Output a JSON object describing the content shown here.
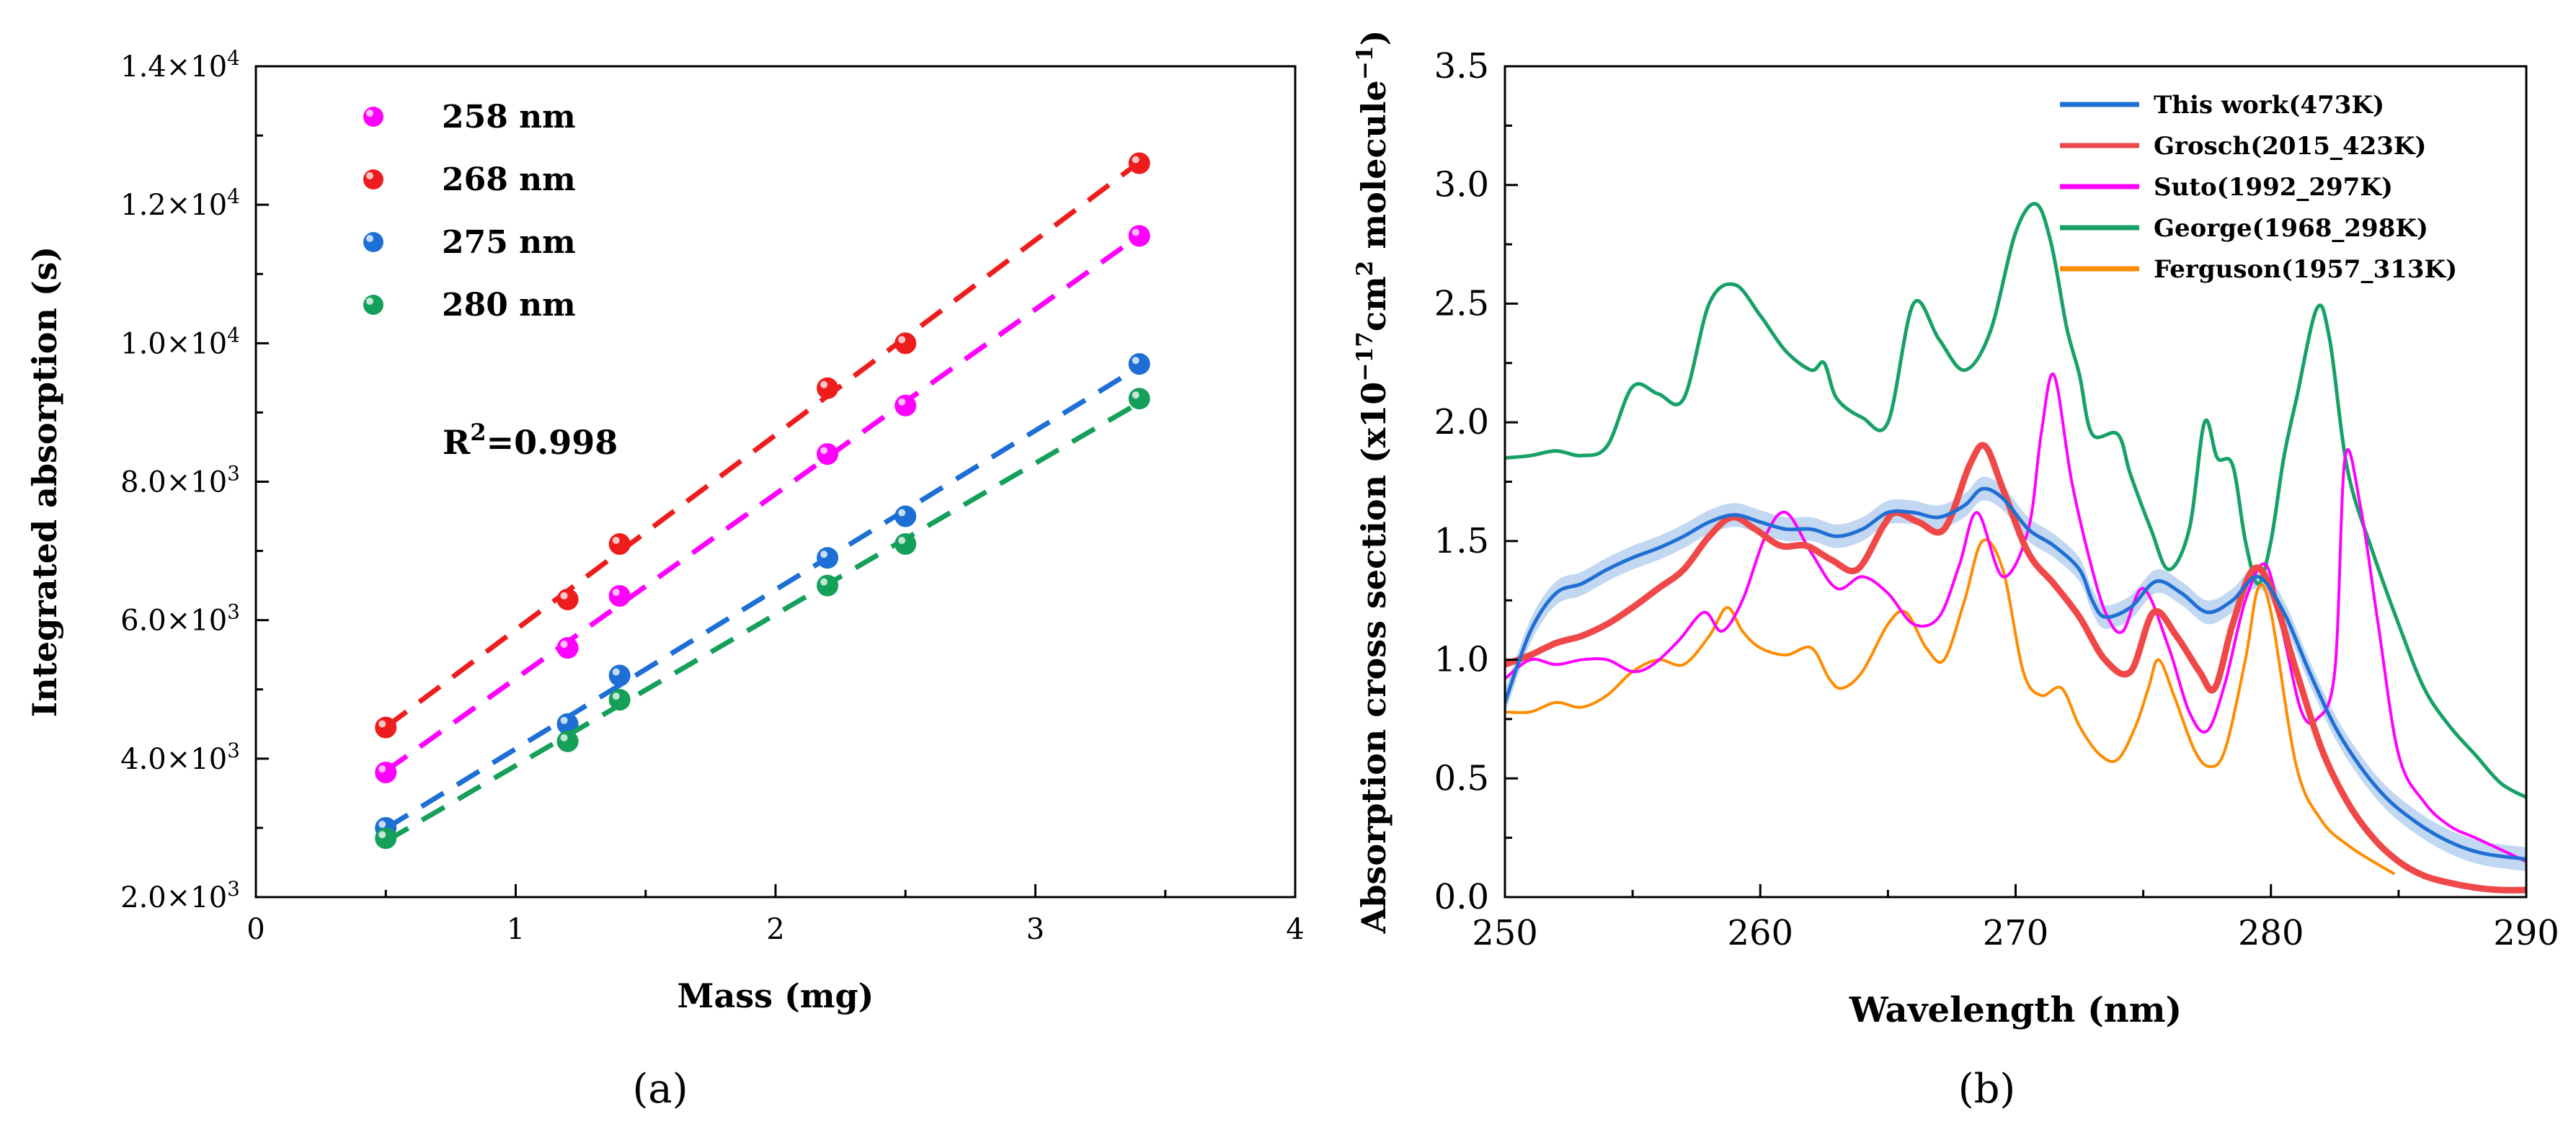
{
  "chart_data": [
    {
      "panel_label": "(a)",
      "type": "scatter",
      "xlabel": "Mass (mg)",
      "ylabel": "Integrated absorption (s)",
      "xlim": [
        0,
        4
      ],
      "ylim": [
        2000,
        14000
      ],
      "xticks": [
        "0",
        "1",
        "2",
        "3",
        "4"
      ],
      "yticks": [
        {
          "mant": "2.0×10",
          "exp": "3"
        },
        {
          "mant": "4.0×10",
          "exp": "3"
        },
        {
          "mant": "6.0×10",
          "exp": "3"
        },
        {
          "mant": "8.0×10",
          "exp": "3"
        },
        {
          "mant": "1.0×10",
          "exp": "4"
        },
        {
          "mant": "1.2×10",
          "exp": "4"
        },
        {
          "mant": "1.4×10",
          "exp": "4"
        }
      ],
      "annotation": {
        "base": "R",
        "sup": "2",
        "rest": "=0.998"
      },
      "x": [
        0.5,
        1.2,
        1.4,
        2.2,
        2.5,
        3.4
      ],
      "series": [
        {
          "name": "258 nm",
          "color": "#ff00ff",
          "values": [
            3800,
            5600,
            6350,
            8400,
            9100,
            11550
          ]
        },
        {
          "name": "268 nm",
          "color": "#ee1c1c",
          "values": [
            4450,
            6300,
            7100,
            9350,
            10000,
            12600
          ]
        },
        {
          "name": "275 nm",
          "color": "#1d6fd6",
          "values": [
            3000,
            4500,
            5200,
            6900,
            7500,
            9700
          ]
        },
        {
          "name": "280 nm",
          "color": "#15a05a",
          "values": [
            2850,
            4250,
            4850,
            6500,
            7100,
            9200
          ]
        }
      ],
      "legend_position": "top-left"
    },
    {
      "panel_label": "(b)",
      "type": "line",
      "xlabel": "Wavelength (nm)",
      "ylabel_parts": {
        "a": "Absorption cross section (x10",
        "exp1": "−17",
        "b": "cm",
        "exp2": "2",
        "c": " molecule",
        "exp3": "−1",
        "d": ")"
      },
      "xlim": [
        250,
        290
      ],
      "ylim": [
        0,
        3.5
      ],
      "xticks": [
        "250",
        "260",
        "270",
        "280",
        "290"
      ],
      "yticks": [
        "0.0",
        "0.5",
        "1.0",
        "1.5",
        "2.0",
        "2.5",
        "3.0",
        "3.5"
      ],
      "legend_position": "top-right",
      "series": [
        {
          "name": "This work(473K)",
          "color": "#1f6fd4",
          "band": true,
          "x": [
            250,
            251,
            252,
            253,
            254,
            255,
            256,
            257,
            258,
            259,
            260,
            261,
            262,
            263,
            264,
            265,
            266,
            267,
            268,
            268.7,
            269.5,
            270.5,
            271.5,
            272.5,
            273,
            273.5,
            274.5,
            275.5,
            276.5,
            277.5,
            278.5,
            279.5,
            280.5,
            281.5,
            282.5,
            283.5,
            284.5,
            285.5,
            286.5,
            287.5,
            288.5,
            290
          ],
          "y": [
            0.82,
            1.12,
            1.28,
            1.32,
            1.38,
            1.43,
            1.47,
            1.52,
            1.58,
            1.61,
            1.58,
            1.55,
            1.55,
            1.52,
            1.55,
            1.62,
            1.62,
            1.6,
            1.65,
            1.72,
            1.68,
            1.55,
            1.48,
            1.38,
            1.25,
            1.18,
            1.22,
            1.33,
            1.28,
            1.2,
            1.25,
            1.35,
            1.2,
            0.95,
            0.72,
            0.55,
            0.42,
            0.33,
            0.26,
            0.21,
            0.18,
            0.16
          ]
        },
        {
          "name": "Grosch(2015_423K)",
          "color": "#f04848",
          "x": [
            250,
            251,
            252,
            253,
            254,
            255,
            256,
            257,
            258,
            258.9,
            259.8,
            260.8,
            261.8,
            262.8,
            263.8,
            264.8,
            265.3,
            266.2,
            267.2,
            268.2,
            268.8,
            269.5,
            270.5,
            271.5,
            272.5,
            273.5,
            274.5,
            275.4,
            276.3,
            277.2,
            277.8,
            278.5,
            279.3,
            280,
            281,
            282,
            283,
            284,
            285,
            286,
            287,
            288,
            289,
            290
          ],
          "y": [
            0.98,
            1.02,
            1.07,
            1.1,
            1.15,
            1.22,
            1.3,
            1.38,
            1.52,
            1.6,
            1.55,
            1.48,
            1.48,
            1.42,
            1.38,
            1.56,
            1.62,
            1.58,
            1.55,
            1.82,
            1.9,
            1.72,
            1.45,
            1.32,
            1.18,
            1.0,
            0.95,
            1.2,
            1.1,
            0.95,
            0.88,
            1.15,
            1.38,
            1.3,
            0.95,
            0.62,
            0.4,
            0.25,
            0.15,
            0.09,
            0.06,
            0.04,
            0.03,
            0.03
          ]
        },
        {
          "name": "Suto(1992_297K)",
          "color": "#ff00ff",
          "x": [
            250,
            251,
            252,
            253,
            254,
            255,
            255.8,
            256.8,
            257.8,
            258.5,
            259.3,
            260.2,
            261,
            262,
            263,
            264,
            265,
            266,
            267,
            267.8,
            268.5,
            269.5,
            270.5,
            271,
            271.5,
            272.2,
            273,
            273.6,
            274.2,
            275,
            276,
            276.8,
            277.5,
            278.2,
            279,
            279.8,
            280.5,
            281.2,
            281.8,
            282.5,
            282.9,
            283.5,
            284.2,
            285,
            286,
            287,
            288,
            289,
            290
          ],
          "y": [
            0.92,
            1.0,
            0.98,
            1.0,
            1.0,
            0.95,
            0.98,
            1.08,
            1.2,
            1.12,
            1.25,
            1.52,
            1.62,
            1.45,
            1.3,
            1.35,
            1.28,
            1.15,
            1.18,
            1.4,
            1.62,
            1.35,
            1.55,
            1.95,
            2.2,
            1.75,
            1.38,
            1.18,
            1.12,
            1.3,
            1.05,
            0.78,
            0.7,
            0.9,
            1.25,
            1.4,
            1.1,
            0.78,
            0.75,
            0.95,
            1.85,
            1.65,
            1.15,
            0.6,
            0.4,
            0.3,
            0.25,
            0.2,
            0.15
          ]
        },
        {
          "name": "George(1968_298K)",
          "color": "#17a167",
          "x": [
            250,
            251,
            252,
            253,
            254,
            255,
            256,
            257,
            258,
            259,
            260,
            261,
            262,
            262.5,
            263,
            264,
            265,
            266,
            267,
            268,
            269,
            270,
            270.8,
            271.4,
            272,
            272.5,
            273,
            274,
            274.5,
            275.3,
            276,
            276.8,
            277.4,
            277.9,
            278.5,
            279,
            279.5,
            280,
            280.5,
            281,
            281.8,
            282.3,
            283,
            284,
            285,
            286,
            287,
            288,
            289,
            290
          ],
          "y": [
            1.85,
            1.86,
            1.88,
            1.86,
            1.9,
            2.15,
            2.12,
            2.1,
            2.5,
            2.58,
            2.45,
            2.3,
            2.22,
            2.25,
            2.1,
            2.02,
            2.0,
            2.5,
            2.35,
            2.22,
            2.38,
            2.8,
            2.92,
            2.75,
            2.4,
            2.2,
            1.95,
            1.95,
            1.78,
            1.55,
            1.38,
            1.55,
            2.0,
            1.85,
            1.82,
            1.5,
            1.32,
            1.5,
            1.85,
            2.1,
            2.48,
            2.35,
            1.8,
            1.45,
            1.15,
            0.88,
            0.72,
            0.6,
            0.48,
            0.42
          ]
        },
        {
          "name": "Ferguson(1957_313K)",
          "color": "#ff8c00",
          "x": [
            250,
            251,
            252,
            253,
            254,
            255,
            256,
            257,
            258,
            258.7,
            259.3,
            260,
            261,
            262,
            262.7,
            263.2,
            264,
            265,
            265.7,
            266.5,
            267.2,
            268,
            268.7,
            269.5,
            270.3,
            271,
            271.8,
            272.5,
            273.3,
            274,
            274.7,
            275.2,
            275.6,
            276.2,
            277,
            277.6,
            278.2,
            279,
            279.5,
            280,
            281,
            282,
            283,
            284,
            284.8
          ],
          "y": [
            0.78,
            0.78,
            0.82,
            0.8,
            0.85,
            0.95,
            1.0,
            0.98,
            1.1,
            1.22,
            1.12,
            1.05,
            1.02,
            1.05,
            0.92,
            0.88,
            0.95,
            1.15,
            1.2,
            1.05,
            1.0,
            1.25,
            1.5,
            1.38,
            0.95,
            0.85,
            0.88,
            0.72,
            0.6,
            0.58,
            0.72,
            0.88,
            1.0,
            0.85,
            0.62,
            0.55,
            0.62,
            1.0,
            1.3,
            1.2,
            0.55,
            0.32,
            0.22,
            0.15,
            0.1
          ]
        }
      ]
    }
  ]
}
